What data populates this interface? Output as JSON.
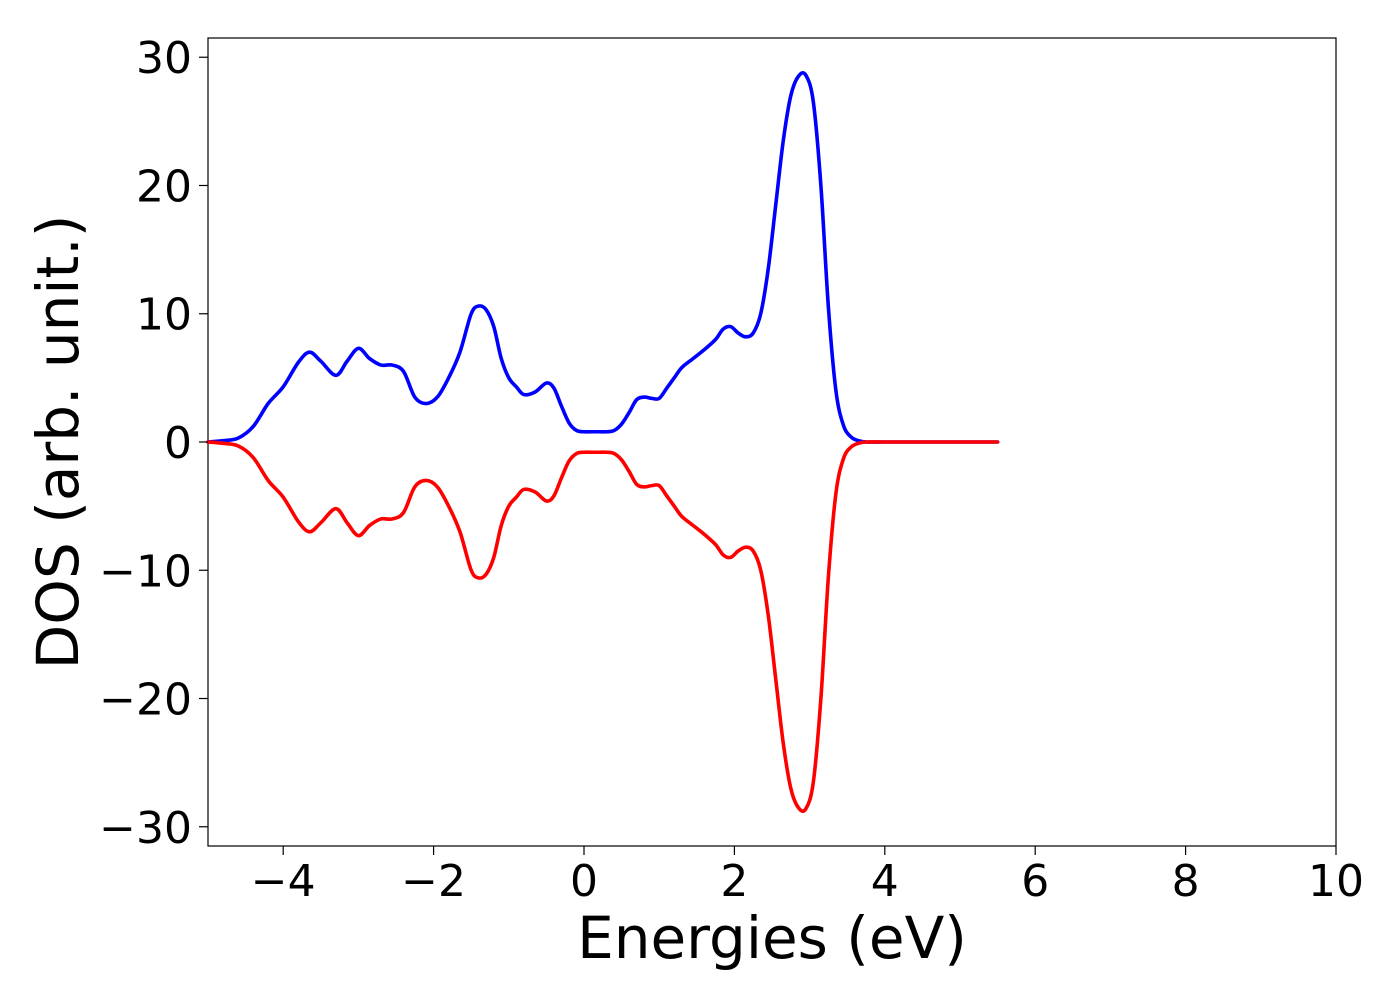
{
  "chart_data": {
    "type": "line",
    "title": "",
    "xlabel": "Energies (eV)",
    "ylabel": "DOS (arb. unit.)",
    "xlim": [
      -5,
      10
    ],
    "ylim": [
      -31.5,
      31.5
    ],
    "xticks": [
      -4,
      -2,
      0,
      2,
      4,
      6,
      8,
      10
    ],
    "xtick_labels": [
      "−4",
      "−2",
      "0",
      "2",
      "4",
      "6",
      "8",
      "10"
    ],
    "yticks": [
      30,
      20,
      10,
      0,
      -10,
      -20,
      -30
    ],
    "ytick_labels": [
      "30",
      "20",
      "10",
      "0",
      "−10",
      "−20",
      "−30"
    ],
    "grid": false,
    "legend": false,
    "series": [
      {
        "color": "#0000ff",
        "x": [
          -5.0,
          -4.8,
          -4.6,
          -4.4,
          -4.2,
          -4.0,
          -3.8,
          -3.65,
          -3.5,
          -3.3,
          -3.15,
          -3.0,
          -2.85,
          -2.7,
          -2.55,
          -2.4,
          -2.25,
          -2.1,
          -1.95,
          -1.8,
          -1.65,
          -1.5,
          -1.4,
          -1.3,
          -1.2,
          -1.1,
          -1.0,
          -0.9,
          -0.8,
          -0.65,
          -0.5,
          -0.4,
          -0.3,
          -0.2,
          -0.1,
          0.0,
          0.1,
          0.2,
          0.3,
          0.4,
          0.5,
          0.6,
          0.7,
          0.8,
          0.9,
          1.0,
          1.1,
          1.2,
          1.3,
          1.45,
          1.6,
          1.75,
          1.85,
          1.95,
          2.05,
          2.15,
          2.25,
          2.35,
          2.45,
          2.55,
          2.65,
          2.75,
          2.85,
          2.95,
          3.05,
          3.15,
          3.25,
          3.35,
          3.45,
          3.55,
          3.65,
          3.75,
          4.0,
          4.5,
          5.0,
          5.5
        ],
        "y": [
          0.0,
          0.1,
          0.3,
          1.2,
          3.0,
          4.3,
          6.2,
          7.0,
          6.3,
          5.2,
          6.3,
          7.3,
          6.5,
          6.0,
          6.0,
          5.5,
          3.5,
          3.0,
          3.5,
          5.0,
          7.0,
          10.0,
          10.6,
          10.3,
          9.0,
          6.5,
          5.0,
          4.3,
          3.7,
          3.9,
          4.6,
          4.2,
          2.8,
          1.5,
          0.9,
          0.8,
          0.8,
          0.8,
          0.8,
          0.9,
          1.4,
          2.3,
          3.3,
          3.5,
          3.4,
          3.4,
          4.2,
          5.0,
          5.8,
          6.5,
          7.2,
          8.0,
          8.8,
          9.0,
          8.5,
          8.2,
          8.5,
          10.0,
          13.5,
          18.5,
          23.5,
          27.0,
          28.5,
          28.6,
          26.5,
          20.0,
          10.5,
          4.0,
          1.3,
          0.4,
          0.1,
          0.0,
          0.0,
          0.0,
          0.0,
          0.0
        ]
      },
      {
        "color": "#ff0000",
        "x": [
          -5.0,
          -4.8,
          -4.6,
          -4.4,
          -4.2,
          -4.0,
          -3.8,
          -3.65,
          -3.5,
          -3.3,
          -3.15,
          -3.0,
          -2.85,
          -2.7,
          -2.55,
          -2.4,
          -2.25,
          -2.1,
          -1.95,
          -1.8,
          -1.65,
          -1.5,
          -1.4,
          -1.3,
          -1.2,
          -1.1,
          -1.0,
          -0.9,
          -0.8,
          -0.65,
          -0.5,
          -0.4,
          -0.3,
          -0.2,
          -0.1,
          0.0,
          0.1,
          0.2,
          0.3,
          0.4,
          0.5,
          0.6,
          0.7,
          0.8,
          0.9,
          1.0,
          1.1,
          1.2,
          1.3,
          1.45,
          1.6,
          1.75,
          1.85,
          1.95,
          2.05,
          2.15,
          2.25,
          2.35,
          2.45,
          2.55,
          2.65,
          2.75,
          2.85,
          2.95,
          3.05,
          3.15,
          3.25,
          3.35,
          3.45,
          3.55,
          3.65,
          3.75,
          4.0,
          4.5,
          5.0,
          5.5
        ],
        "y": [
          0.0,
          -0.1,
          -0.3,
          -1.2,
          -3.0,
          -4.3,
          -6.2,
          -7.0,
          -6.3,
          -5.2,
          -6.3,
          -7.3,
          -6.5,
          -6.0,
          -6.0,
          -5.5,
          -3.5,
          -3.0,
          -3.5,
          -5.0,
          -7.0,
          -10.0,
          -10.6,
          -10.3,
          -9.0,
          -6.5,
          -5.0,
          -4.3,
          -3.7,
          -3.9,
          -4.6,
          -4.2,
          -2.8,
          -1.5,
          -0.9,
          -0.8,
          -0.8,
          -0.8,
          -0.8,
          -0.9,
          -1.4,
          -2.3,
          -3.3,
          -3.5,
          -3.4,
          -3.4,
          -4.2,
          -5.0,
          -5.8,
          -6.5,
          -7.2,
          -8.0,
          -8.8,
          -9.0,
          -8.5,
          -8.2,
          -8.5,
          -10.0,
          -13.5,
          -18.5,
          -23.5,
          -27.0,
          -28.5,
          -28.6,
          -26.5,
          -20.0,
          -10.5,
          -4.0,
          -1.3,
          -0.4,
          -0.1,
          0.0,
          0.0,
          0.0,
          0.0,
          0.0
        ]
      }
    ]
  }
}
